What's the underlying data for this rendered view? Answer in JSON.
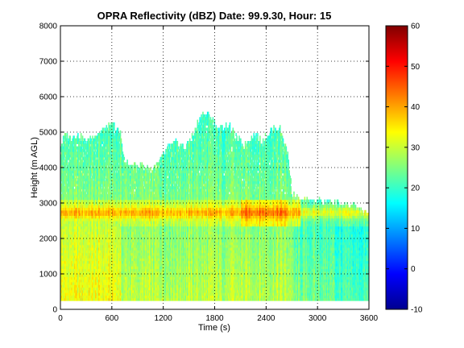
{
  "chart_data": {
    "type": "heatmap",
    "title": "OPRA Reflectivity (dBZ)  Date: 99.9.30, Hour: 15",
    "xlabel": "Time (s)",
    "ylabel": "Height (m AGL)",
    "xlim": [
      0,
      3600
    ],
    "ylim": [
      0,
      8000
    ],
    "x_ticks": [
      "0",
      "600",
      "1200",
      "1800",
      "2400",
      "3000",
      "3600"
    ],
    "y_ticks": [
      "0",
      "1000",
      "2000",
      "3000",
      "4000",
      "5000",
      "6000",
      "7000",
      "8000"
    ],
    "grid": true,
    "colormap": "jet",
    "colorbar": {
      "range": [
        -10,
        60
      ],
      "ticks": [
        "-10",
        "0",
        "10",
        "20",
        "30",
        "40",
        "50",
        "60"
      ]
    },
    "data_extent": {
      "time_start": 0,
      "time_end": 3600,
      "height_min": 250,
      "bright_band_height": 2700
    },
    "echo_top": [
      [
        0,
        4600
      ],
      [
        60,
        4900
      ],
      [
        120,
        4800
      ],
      [
        200,
        4900
      ],
      [
        300,
        4700
      ],
      [
        400,
        4900
      ],
      [
        500,
        5000
      ],
      [
        600,
        5200
      ],
      [
        700,
        4900
      ],
      [
        750,
        4100
      ],
      [
        850,
        4000
      ],
      [
        950,
        4050
      ],
      [
        1050,
        3900
      ],
      [
        1150,
        4100
      ],
      [
        1250,
        4500
      ],
      [
        1350,
        4700
      ],
      [
        1450,
        4500
      ],
      [
        1550,
        4900
      ],
      [
        1650,
        5500
      ],
      [
        1750,
        5400
      ],
      [
        1850,
        5000
      ],
      [
        1950,
        5200
      ],
      [
        2050,
        4800
      ],
      [
        2150,
        4600
      ],
      [
        2250,
        4900
      ],
      [
        2350,
        4700
      ],
      [
        2450,
        5000
      ],
      [
        2550,
        5100
      ],
      [
        2650,
        4400
      ],
      [
        2700,
        3200
      ],
      [
        2800,
        3000
      ],
      [
        3000,
        3000
      ],
      [
        3200,
        2950
      ],
      [
        3400,
        2900
      ],
      [
        3550,
        2700
      ],
      [
        3600,
        2600
      ]
    ]
  }
}
